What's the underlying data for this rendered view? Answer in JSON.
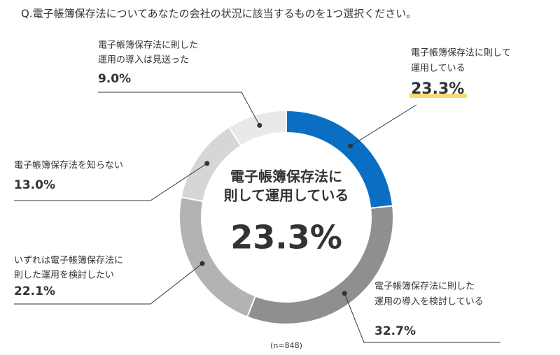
{
  "chart_data": {
    "type": "donut",
    "title": "Q.電子帳簿保存法についてあなたの会社の状況に該当するものを1つ選択ください。",
    "categories": [
      [
        "電子帳簿保存法に則して",
        "運用している"
      ],
      [
        "電子帳簿保存法に則した",
        "運用の導入を検討している"
      ],
      [
        "いずれは電子帳簿保存法に",
        "則した運用を検討したい"
      ],
      [
        "電子帳簿保存法を知らない"
      ],
      [
        "電子帳簿保存法に則した",
        "運用の導入は見送った"
      ]
    ],
    "values": [
      23.3,
      32.7,
      22.1,
      13.0,
      9.0
    ],
    "value_labels": [
      "23.3%",
      "32.7%",
      "22.1%",
      "13.0%",
      "9.0%"
    ],
    "colors": [
      "#0a6fc3",
      "#8f8f8f",
      "#b3b3b3",
      "#d6d6d6",
      "#e9e9e9"
    ],
    "center_label": [
      "電子帳簿保存法に",
      "則して運用している"
    ],
    "note": "(n=848)"
  }
}
